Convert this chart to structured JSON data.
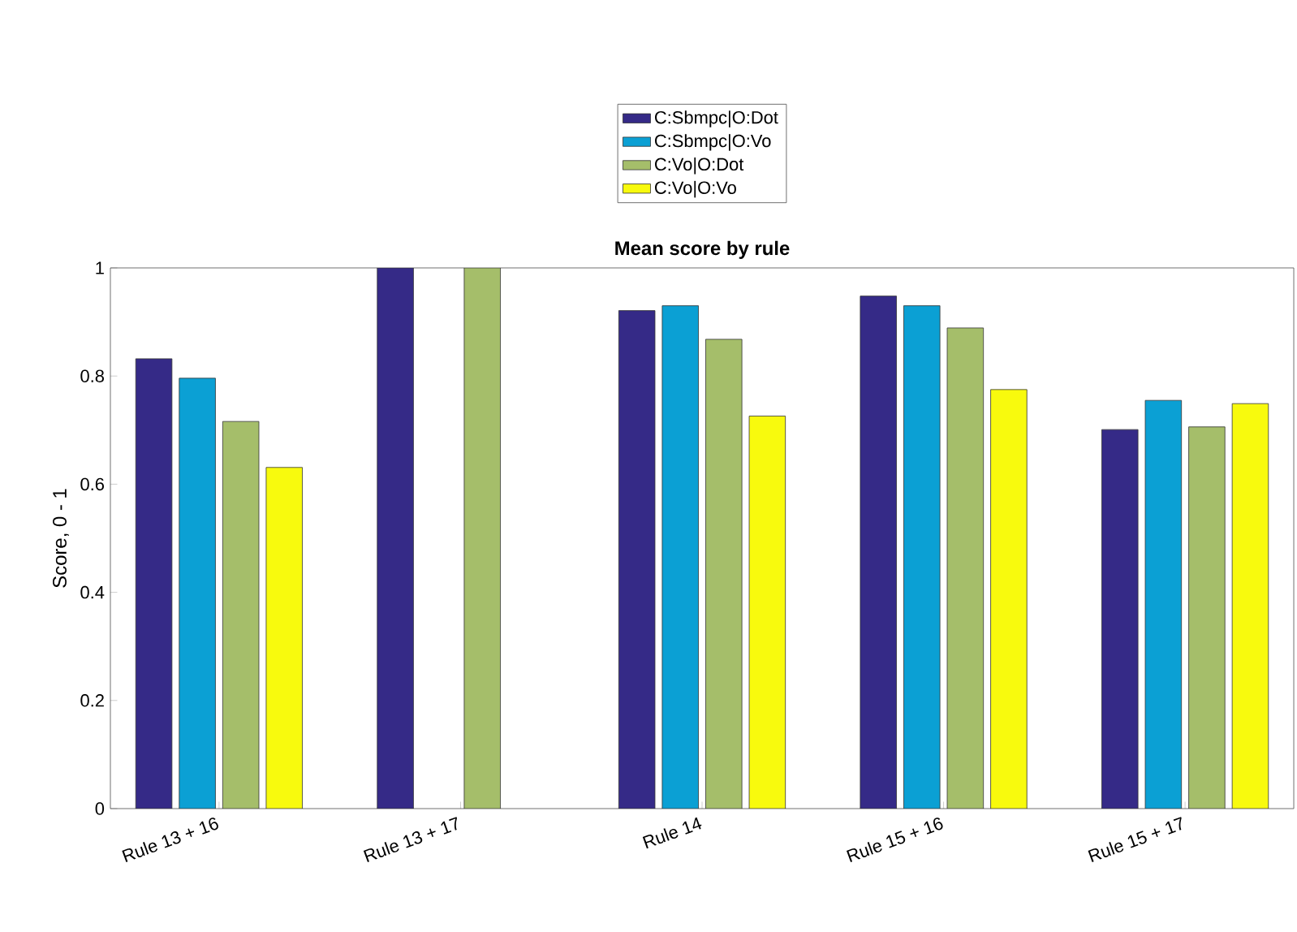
{
  "chart_data": {
    "type": "bar",
    "title": "Mean score by rule",
    "ylabel": "Score, 0 - 1",
    "categories": [
      "Rule 13 + 16",
      "Rule 13 + 17",
      "Rule 14",
      "Rule 15 + 16",
      "Rule 15 + 17"
    ],
    "series": [
      {
        "name": "C:Sbmpc|O:Dot",
        "color": "#352a87",
        "values": [
          0.832,
          1.0,
          0.921,
          0.948,
          0.701
        ]
      },
      {
        "name": "C:Sbmpc|O:Vo",
        "color": "#0ba0d4",
        "values": [
          0.796,
          null,
          0.93,
          0.93,
          0.755
        ]
      },
      {
        "name": "C:Vo|O:Dot",
        "color": "#a5be6a",
        "values": [
          0.716,
          1.0,
          0.868,
          0.889,
          0.706
        ]
      },
      {
        "name": "C:Vo|O:Vo",
        "color": "#f8fa0d",
        "values": [
          0.631,
          null,
          0.726,
          0.775,
          0.749
        ]
      }
    ],
    "ylim": [
      0,
      1
    ],
    "yticks": [
      0,
      0.2,
      0.4,
      0.6,
      0.8,
      1
    ],
    "legend": "top",
    "grid": false
  }
}
